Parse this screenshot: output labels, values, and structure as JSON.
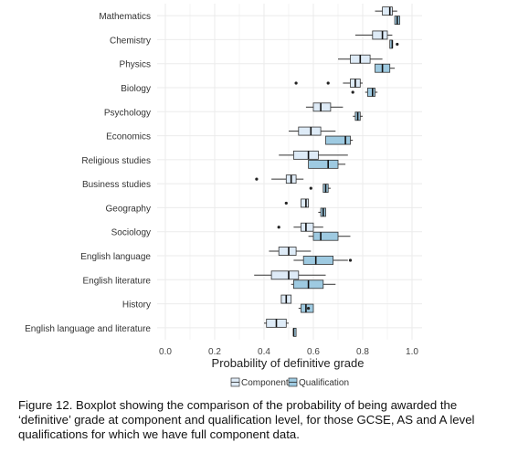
{
  "chart_data": {
    "type": "boxplot",
    "orientation": "horizontal",
    "xlabel": "Probability of definitive grade",
    "ylabel": "",
    "xlim": [
      0,
      1.05
    ],
    "xticks": [
      "0.0",
      "0.2",
      "0.4",
      "0.6",
      "0.8",
      "1.0"
    ],
    "xtick_values": [
      0,
      0.2,
      0.4,
      0.6,
      0.8,
      1.0
    ],
    "grid": true,
    "legend_position": "bottom",
    "legend": [
      {
        "name": "Component",
        "color": "#deebf7"
      },
      {
        "name": "Qualification",
        "color": "#9ecae1"
      }
    ],
    "categories": [
      "Mathematics",
      "Chemistry",
      "Physics",
      "Biology",
      "Psychology",
      "Economics",
      "Religious studies",
      "Business studies",
      "Geography",
      "Sociology",
      "English language",
      "English literature",
      "History",
      "English language and literature"
    ],
    "series": [
      {
        "name": "Component",
        "color": "#deebf7",
        "boxes": [
          {
            "category": "Mathematics",
            "min": 0.85,
            "q1": 0.88,
            "median": 0.91,
            "q3": 0.92,
            "max": 0.94,
            "outliers": []
          },
          {
            "category": "Chemistry",
            "min": 0.77,
            "q1": 0.84,
            "median": 0.88,
            "q3": 0.9,
            "max": 0.92,
            "outliers": []
          },
          {
            "category": "Physics",
            "min": 0.7,
            "q1": 0.75,
            "median": 0.79,
            "q3": 0.83,
            "max": 0.88,
            "outliers": []
          },
          {
            "category": "Biology",
            "min": 0.72,
            "q1": 0.75,
            "median": 0.77,
            "q3": 0.79,
            "max": 0.8,
            "outliers": [
              0.53,
              0.66
            ]
          },
          {
            "category": "Psychology",
            "min": 0.57,
            "q1": 0.6,
            "median": 0.63,
            "q3": 0.67,
            "max": 0.72,
            "outliers": []
          },
          {
            "category": "Economics",
            "min": 0.5,
            "q1": 0.54,
            "median": 0.59,
            "q3": 0.63,
            "max": 0.69,
            "outliers": []
          },
          {
            "category": "Religious studies",
            "min": 0.46,
            "q1": 0.52,
            "median": 0.58,
            "q3": 0.62,
            "max": 0.74,
            "outliers": []
          },
          {
            "category": "Business studies",
            "min": 0.43,
            "q1": 0.49,
            "median": 0.51,
            "q3": 0.53,
            "max": 0.56,
            "outliers": [
              0.37
            ]
          },
          {
            "category": "Geography",
            "min": 0.55,
            "q1": 0.55,
            "median": 0.57,
            "q3": 0.58,
            "max": 0.58,
            "outliers": [
              0.49
            ]
          },
          {
            "category": "Sociology",
            "min": 0.52,
            "q1": 0.55,
            "median": 0.57,
            "q3": 0.6,
            "max": 0.64,
            "outliers": [
              0.46
            ]
          },
          {
            "category": "English language",
            "min": 0.42,
            "q1": 0.46,
            "median": 0.5,
            "q3": 0.53,
            "max": 0.59,
            "outliers": []
          },
          {
            "category": "English literature",
            "min": 0.36,
            "q1": 0.43,
            "median": 0.5,
            "q3": 0.54,
            "max": 0.65,
            "outliers": []
          },
          {
            "category": "History",
            "min": 0.47,
            "q1": 0.47,
            "median": 0.49,
            "q3": 0.51,
            "max": 0.51,
            "outliers": []
          },
          {
            "category": "English language and literature",
            "min": 0.4,
            "q1": 0.41,
            "median": 0.45,
            "q3": 0.49,
            "max": 0.5,
            "outliers": []
          }
        ]
      },
      {
        "name": "Qualification",
        "color": "#9ecae1",
        "boxes": [
          {
            "category": "Mathematics",
            "min": 0.93,
            "q1": 0.93,
            "median": 0.94,
            "q3": 0.95,
            "max": 0.95,
            "outliers": []
          },
          {
            "category": "Chemistry",
            "min": 0.91,
            "q1": 0.91,
            "median": 0.92,
            "q3": 0.92,
            "max": 0.92,
            "outliers": [
              0.94
            ]
          },
          {
            "category": "Physics",
            "min": 0.85,
            "q1": 0.85,
            "median": 0.88,
            "q3": 0.91,
            "max": 0.93,
            "outliers": []
          },
          {
            "category": "Biology",
            "min": 0.81,
            "q1": 0.82,
            "median": 0.84,
            "q3": 0.85,
            "max": 0.86,
            "outliers": [
              0.76
            ]
          },
          {
            "category": "Psychology",
            "min": 0.76,
            "q1": 0.77,
            "median": 0.78,
            "q3": 0.79,
            "max": 0.8,
            "outliers": []
          },
          {
            "category": "Economics",
            "min": 0.65,
            "q1": 0.65,
            "median": 0.73,
            "q3": 0.75,
            "max": 0.76,
            "outliers": []
          },
          {
            "category": "Religious studies",
            "min": 0.58,
            "q1": 0.58,
            "median": 0.66,
            "q3": 0.7,
            "max": 0.73,
            "outliers": []
          },
          {
            "category": "Business studies",
            "min": 0.64,
            "q1": 0.64,
            "median": 0.65,
            "q3": 0.66,
            "max": 0.67,
            "outliers": [
              0.59
            ]
          },
          {
            "category": "Geography",
            "min": 0.62,
            "q1": 0.63,
            "median": 0.64,
            "q3": 0.65,
            "max": 0.65,
            "outliers": []
          },
          {
            "category": "Sociology",
            "min": 0.58,
            "q1": 0.6,
            "median": 0.63,
            "q3": 0.7,
            "max": 0.75,
            "outliers": []
          },
          {
            "category": "English language",
            "min": 0.52,
            "q1": 0.56,
            "median": 0.61,
            "q3": 0.68,
            "max": 0.74,
            "outliers": [
              0.75
            ]
          },
          {
            "category": "English literature",
            "min": 0.51,
            "q1": 0.52,
            "median": 0.58,
            "q3": 0.64,
            "max": 0.69,
            "outliers": []
          },
          {
            "category": "History",
            "min": 0.54,
            "q1": 0.55,
            "median": 0.57,
            "q3": 0.6,
            "max": 0.6,
            "outliers": [
              0.58
            ]
          },
          {
            "category": "English language and literature",
            "min": 0.52,
            "q1": 0.52,
            "median": 0.52,
            "q3": 0.53,
            "max": 0.53,
            "outliers": []
          }
        ]
      }
    ]
  },
  "caption": "Figure 12.  Boxplot showing the comparison of the probability of being awarded the ‘definitive’ grade at component and qualification level, for those GCSE, AS and A level qualifications for which we have full component data."
}
